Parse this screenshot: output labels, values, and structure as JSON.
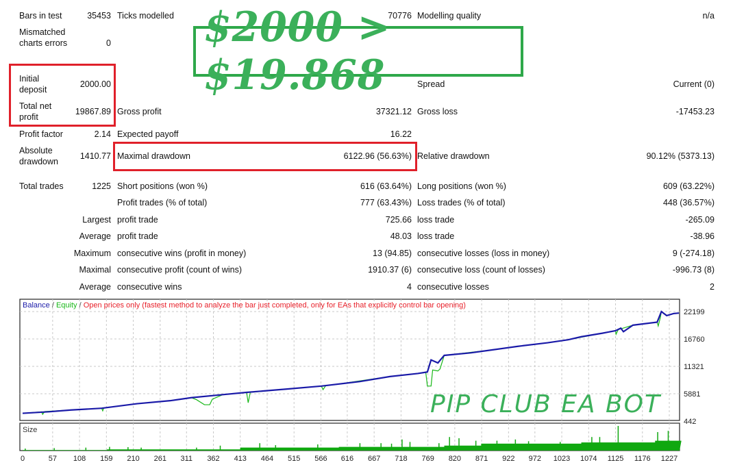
{
  "report": {
    "row1": {
      "l1": "Bars in test",
      "v1": "35453",
      "l2": "Ticks modelled",
      "v2": "70776",
      "l3": "Modelling quality",
      "v3": "n/a"
    },
    "row2": {
      "l1": "Mismatched charts errors",
      "v1": "0"
    },
    "row3": {
      "l1": "Initial deposit",
      "v1": "2000.00",
      "l3": "Spread",
      "v3": "Current (0)"
    },
    "row4": {
      "l1": "Total net profit",
      "v1": "19867.89",
      "l2": "Gross profit",
      "v2": "37321.12",
      "l3": "Gross loss",
      "v3": "-17453.23"
    },
    "row5": {
      "l1": "Profit factor",
      "v1": "2.14",
      "l2": "Expected payoff",
      "v2": "16.22"
    },
    "row6": {
      "l1": "Absolute drawdown",
      "v1": "1410.77",
      "l2": "Maximal drawdown",
      "v2": "6122.96 (56.63%)",
      "l3": "Relative drawdown",
      "v3": "90.12% (5373.13)"
    },
    "row7": {
      "l1": "Total trades",
      "v1": "1225",
      "l2": "Short positions (won %)",
      "v2": "616 (63.64%)",
      "l3": "Long positions (won %)",
      "v3": "609 (63.22%)"
    },
    "row8": {
      "l2": "Profit trades (% of total)",
      "v2": "777 (63.43%)",
      "l3": "Loss trades (% of total)",
      "v3": "448 (36.57%)"
    },
    "row9": {
      "l1": "Largest",
      "l2": "profit trade",
      "v2": "725.66",
      "l3": "loss trade",
      "v3": "-265.09"
    },
    "row10": {
      "l1": "Average",
      "l2": "profit trade",
      "v2": "48.03",
      "l3": "loss trade",
      "v3": "-38.96"
    },
    "row11": {
      "l1": "Maximum",
      "l2": "consecutive wins (profit in money)",
      "v2": "13 (94.85)",
      "l3": "consecutive losses (loss in money)",
      "v3": "9 (-274.18)"
    },
    "row12": {
      "l1": "Maximal",
      "l2": "consecutive profit (count of wins)",
      "v2": "1910.37 (6)",
      "l3": "consecutive loss (count of losses)",
      "v3": "-996.73 (8)"
    },
    "row13": {
      "l1": "Average",
      "l2": "consecutive wins",
      "v2": "4",
      "l3": "consecutive losses",
      "v3": "2"
    }
  },
  "banner": "$2000 > $19.868",
  "watermark": "PIP CLUB EA BOT",
  "colors": {
    "highlight_box": "#e0202a",
    "banner": "#2ea84a",
    "balance": "#1a1aa8",
    "equity": "#18b818",
    "mode_text": "#e8202a",
    "size_bars": "#10a810"
  },
  "chart_data": {
    "type": "line",
    "legend": {
      "balance": "Balance",
      "sep1": " / ",
      "equity": "Equity",
      "sep2": " / ",
      "mode": "Open prices only (fastest method to analyze the bar just completed, only for EAs that explicitly control bar opening)"
    },
    "legend_placement": "top-left",
    "grid": true,
    "ylim": [
      442,
      24000
    ],
    "y_ticks": [
      "22199",
      "16760",
      "11321",
      "5881",
      "442"
    ],
    "x_ticks": [
      "0",
      "57",
      "108",
      "159",
      "210",
      "261",
      "311",
      "362",
      "413",
      "464",
      "515",
      "566",
      "616",
      "667",
      "718",
      "769",
      "820",
      "871",
      "922",
      "972",
      "1023",
      "1074",
      "1125",
      "1176",
      "1227"
    ],
    "xlim": [
      0,
      1250
    ],
    "series": [
      {
        "name": "Balance",
        "points": [
          [
            0,
            2000
          ],
          [
            50,
            2300
          ],
          [
            92,
            2650
          ],
          [
            150,
            3000
          ],
          [
            217,
            3900
          ],
          [
            280,
            4500
          ],
          [
            320,
            5100
          ],
          [
            380,
            5700
          ],
          [
            425,
            6150
          ],
          [
            500,
            6800
          ],
          [
            567,
            7400
          ],
          [
            640,
            8300
          ],
          [
            697,
            9300
          ],
          [
            750,
            9900
          ],
          [
            768,
            10200
          ],
          [
            775,
            12600
          ],
          [
            788,
            12000
          ],
          [
            800,
            13500
          ],
          [
            850,
            14000
          ],
          [
            892,
            14600
          ],
          [
            940,
            15300
          ],
          [
            996,
            16000
          ],
          [
            1035,
            16600
          ],
          [
            1060,
            17200
          ],
          [
            1100,
            17900
          ],
          [
            1125,
            18400
          ],
          [
            1135,
            18900
          ],
          [
            1140,
            18200
          ],
          [
            1158,
            19500
          ],
          [
            1204,
            20100
          ],
          [
            1212,
            22200
          ],
          [
            1222,
            21400
          ],
          [
            1235,
            21800
          ],
          [
            1250,
            21900
          ]
        ]
      },
      {
        "name": "Equity",
        "points": [
          [
            0,
            2000
          ],
          [
            36,
            2300
          ],
          [
            38,
            1800
          ],
          [
            42,
            2350
          ],
          [
            92,
            2650
          ],
          [
            150,
            3000
          ],
          [
            152,
            2480
          ],
          [
            154,
            3050
          ],
          [
            217,
            3900
          ],
          [
            280,
            4500
          ],
          [
            320,
            5100
          ],
          [
            330,
            4700
          ],
          [
            345,
            3700
          ],
          [
            355,
            3700
          ],
          [
            360,
            4800
          ],
          [
            380,
            5700
          ],
          [
            425,
            6150
          ],
          [
            428,
            4100
          ],
          [
            432,
            6150
          ],
          [
            500,
            6800
          ],
          [
            567,
            7400
          ],
          [
            570,
            6700
          ],
          [
            575,
            7450
          ],
          [
            697,
            9300
          ],
          [
            750,
            9900
          ],
          [
            765,
            10100
          ],
          [
            768,
            7400
          ],
          [
            775,
            7400
          ],
          [
            778,
            10600
          ],
          [
            788,
            10400
          ],
          [
            792,
            10800
          ],
          [
            800,
            13500
          ],
          [
            892,
            14600
          ],
          [
            940,
            15300
          ],
          [
            996,
            16000
          ],
          [
            1035,
            16600
          ],
          [
            1100,
            17900
          ],
          [
            1125,
            18400
          ],
          [
            1126,
            17700
          ],
          [
            1130,
            18600
          ],
          [
            1158,
            19500
          ],
          [
            1204,
            20100
          ],
          [
            1206,
            19340
          ],
          [
            1210,
            21000
          ],
          [
            1212,
            22200
          ],
          [
            1222,
            21400
          ],
          [
            1235,
            21800
          ],
          [
            1250,
            21900
          ]
        ]
      }
    ],
    "size_panel": {
      "label": "Size",
      "baseline_steps": [
        [
          0,
          0.02
        ],
        [
          160,
          0.05
        ],
        [
          413,
          0.12
        ],
        [
          600,
          0.15
        ],
        [
          800,
          0.2
        ],
        [
          870,
          0.28
        ],
        [
          1060,
          0.33
        ],
        [
          1200,
          0.4
        ],
        [
          1250,
          0.4
        ]
      ],
      "spikes": [
        [
          5,
          0.08
        ],
        [
          60,
          0.1
        ],
        [
          120,
          0.12
        ],
        [
          165,
          0.15
        ],
        [
          200,
          0.14
        ],
        [
          225,
          0.12
        ],
        [
          330,
          0.12
        ],
        [
          375,
          0.2
        ],
        [
          450,
          0.3
        ],
        [
          480,
          0.22
        ],
        [
          560,
          0.25
        ],
        [
          640,
          0.3
        ],
        [
          680,
          0.3
        ],
        [
          700,
          0.28
        ],
        [
          720,
          0.45
        ],
        [
          735,
          0.35
        ],
        [
          790,
          0.3
        ],
        [
          810,
          0.55
        ],
        [
          828,
          0.5
        ],
        [
          860,
          0.4
        ],
        [
          900,
          0.4
        ],
        [
          935,
          0.45
        ],
        [
          960,
          0.38
        ],
        [
          1020,
          0.35
        ],
        [
          1080,
          0.55
        ],
        [
          1095,
          0.55
        ],
        [
          1130,
          1.0
        ],
        [
          1205,
          0.75
        ],
        [
          1225,
          0.8
        ]
      ]
    }
  }
}
